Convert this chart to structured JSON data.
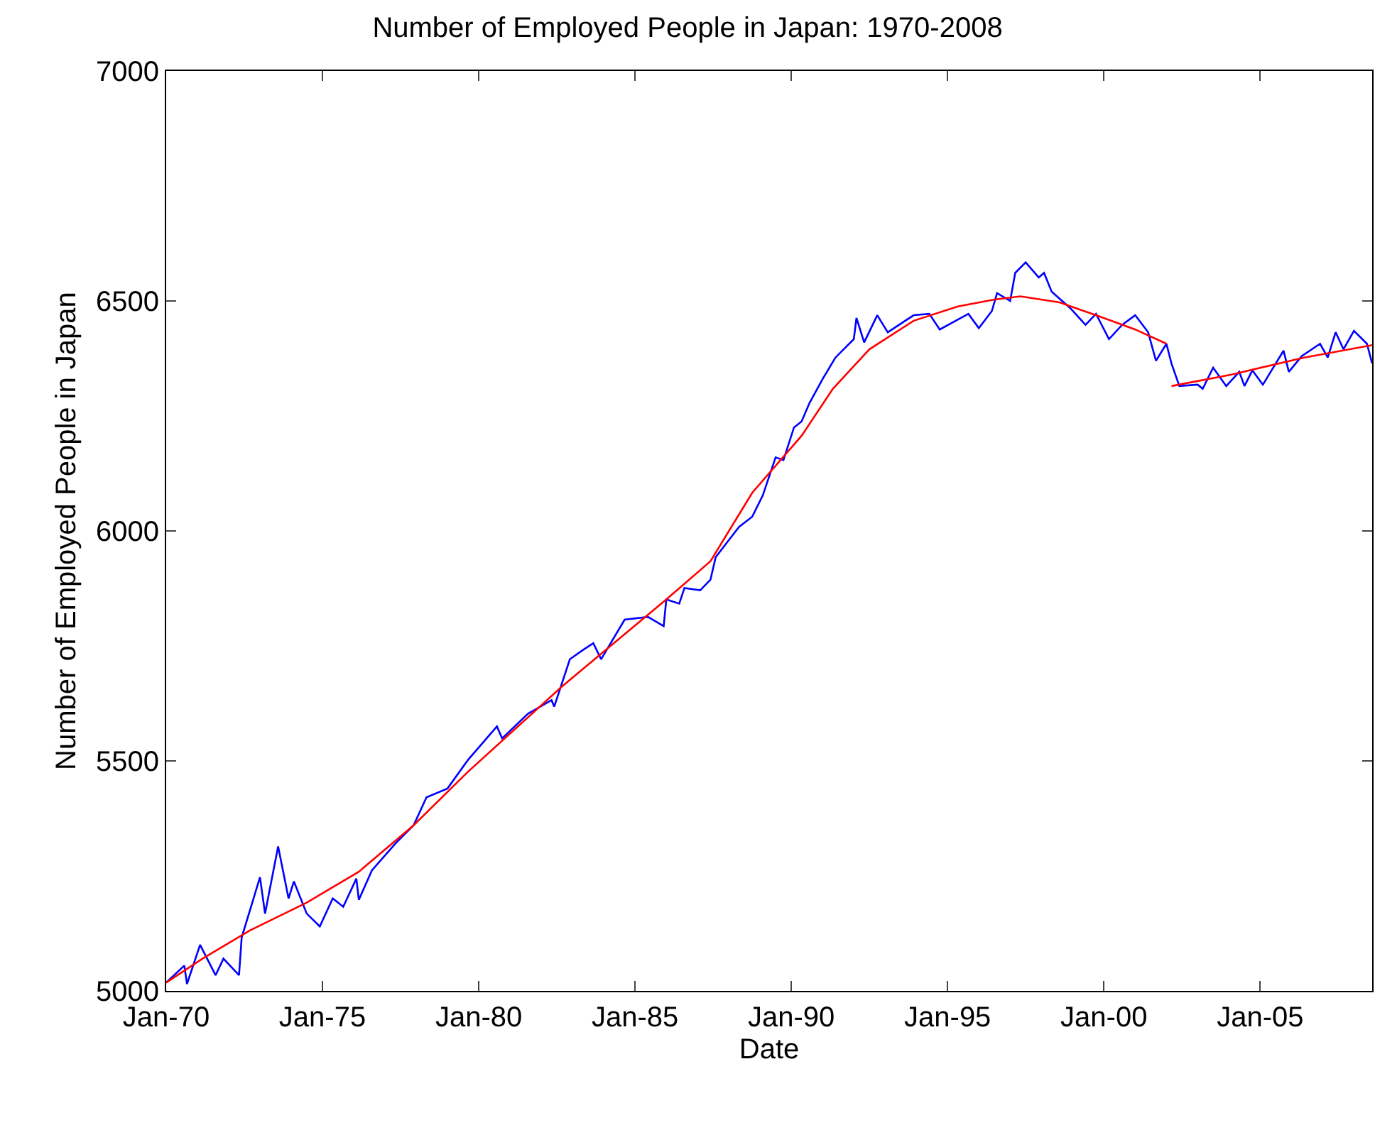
{
  "chart_data": {
    "type": "line",
    "title": "Number of Employed People in Japan: 1970-2008",
    "xlabel": "Date",
    "ylabel": "Number of Employed People in Japan",
    "xlim": [
      "1970-01",
      "2008-08"
    ],
    "xticks": [
      {
        "value": "1970-01",
        "label": "Jan-70"
      },
      {
        "value": "1975-01",
        "label": "Jan-75"
      },
      {
        "value": "1980-01",
        "label": "Jan-80"
      },
      {
        "value": "1985-01",
        "label": "Jan-85"
      },
      {
        "value": "1990-01",
        "label": "Jan-90"
      },
      {
        "value": "1995-01",
        "label": "Jan-95"
      },
      {
        "value": "2000-01",
        "label": "Jan-00"
      },
      {
        "value": "2005-01",
        "label": "Jan-05"
      }
    ],
    "ylim": [
      5000,
      7000
    ],
    "yticks": [
      5000,
      5500,
      6000,
      6500,
      7000
    ],
    "grid": false,
    "series": [
      {
        "color": "#0000ff",
        "x": [
          "1970-01",
          "1970-08",
          "1970-09",
          "1971-02",
          "1971-08",
          "1971-11",
          "1972-05",
          "1972-06",
          "1973-01",
          "1973-03",
          "1973-08",
          "1973-12",
          "1974-02",
          "1974-07",
          "1974-12",
          "1975-05",
          "1975-09",
          "1976-02",
          "1976-03",
          "1976-08",
          "1977-05",
          "1977-12",
          "1978-05",
          "1979-01",
          "1979-09",
          "1980-08",
          "1980-10",
          "1981-08",
          "1982-05",
          "1982-06",
          "1982-12",
          "1983-05",
          "1983-09",
          "1983-12",
          "1984-09",
          "1985-06",
          "1985-12",
          "1986-01",
          "1986-06",
          "1986-08",
          "1987-02",
          "1987-06",
          "1987-08",
          "1988-01",
          "1988-05",
          "1988-10",
          "1989-02",
          "1989-07",
          "1989-10",
          "1990-02",
          "1990-05",
          "1990-08",
          "1991-01",
          "1991-06",
          "1992-01",
          "1992-02",
          "1992-05",
          "1992-10",
          "1993-02",
          "1993-12",
          "1994-06",
          "1994-10",
          "1995-09",
          "1996-01",
          "1996-06",
          "1996-08",
          "1997-01",
          "1997-03",
          "1997-07",
          "1997-12",
          "1998-02",
          "1998-05",
          "1998-12",
          "1999-06",
          "1999-10",
          "2000-03",
          "2000-08",
          "2001-01",
          "2001-06",
          "2001-09",
          "2002-01",
          "2002-03",
          "2002-06",
          "2003-01",
          "2003-03",
          "2003-07",
          "2003-12",
          "2004-05",
          "2004-07",
          "2004-10",
          "2005-02",
          "2005-10",
          "2005-12",
          "2006-05",
          "2006-12",
          "2007-03",
          "2007-06",
          "2007-09",
          "2008-01",
          "2008-06",
          "2008-08"
        ],
        "values": [
          5018,
          5055,
          5015,
          5100,
          5034,
          5070,
          5034,
          5116,
          5247,
          5168,
          5314,
          5201,
          5238,
          5168,
          5140,
          5201,
          5183,
          5244,
          5198,
          5262,
          5320,
          5360,
          5421,
          5440,
          5503,
          5575,
          5549,
          5603,
          5632,
          5618,
          5721,
          5741,
          5756,
          5721,
          5807,
          5813,
          5793,
          5851,
          5842,
          5876,
          5871,
          5894,
          5943,
          5980,
          6009,
          6031,
          6077,
          6160,
          6154,
          6225,
          6238,
          6278,
          6330,
          6377,
          6417,
          6463,
          6410,
          6469,
          6432,
          6469,
          6472,
          6438,
          6472,
          6441,
          6478,
          6517,
          6500,
          6561,
          6584,
          6551,
          6561,
          6520,
          6485,
          6448,
          6472,
          6417,
          6448,
          6469,
          6432,
          6370,
          6407,
          6364,
          6315,
          6318,
          6309,
          6355,
          6315,
          6346,
          6315,
          6349,
          6318,
          6392,
          6346,
          6380,
          6407,
          6377,
          6432,
          6395,
          6435,
          6407,
          6364
        ]
      },
      {
        "color": "#ff0000",
        "x": [
          "1970-01",
          "1971-03",
          "1972-09",
          "1974-07",
          "1976-03",
          "1977-12",
          "1979-09",
          "1982-09",
          "1986-01",
          "1987-06",
          "1988-10",
          "1990-05",
          "1991-05",
          "1992-07",
          "1993-12",
          "1995-05",
          "1996-07",
          "1997-05",
          "1998-08",
          "1999-10",
          "2001-01",
          "2002-01"
        ],
        "values": [
          5018,
          5070,
          5131,
          5192,
          5259,
          5360,
          5477,
          5662,
          5851,
          5934,
          6083,
          6207,
          6309,
          6395,
          6457,
          6488,
          6503,
          6510,
          6497,
          6469,
          6438,
          6407
        ]
      },
      {
        "color": "#ff0000",
        "x": [
          "2002-03",
          "2004-02",
          "2006-06",
          "2008-08"
        ],
        "values": [
          6315,
          6340,
          6377,
          6404
        ]
      }
    ]
  }
}
